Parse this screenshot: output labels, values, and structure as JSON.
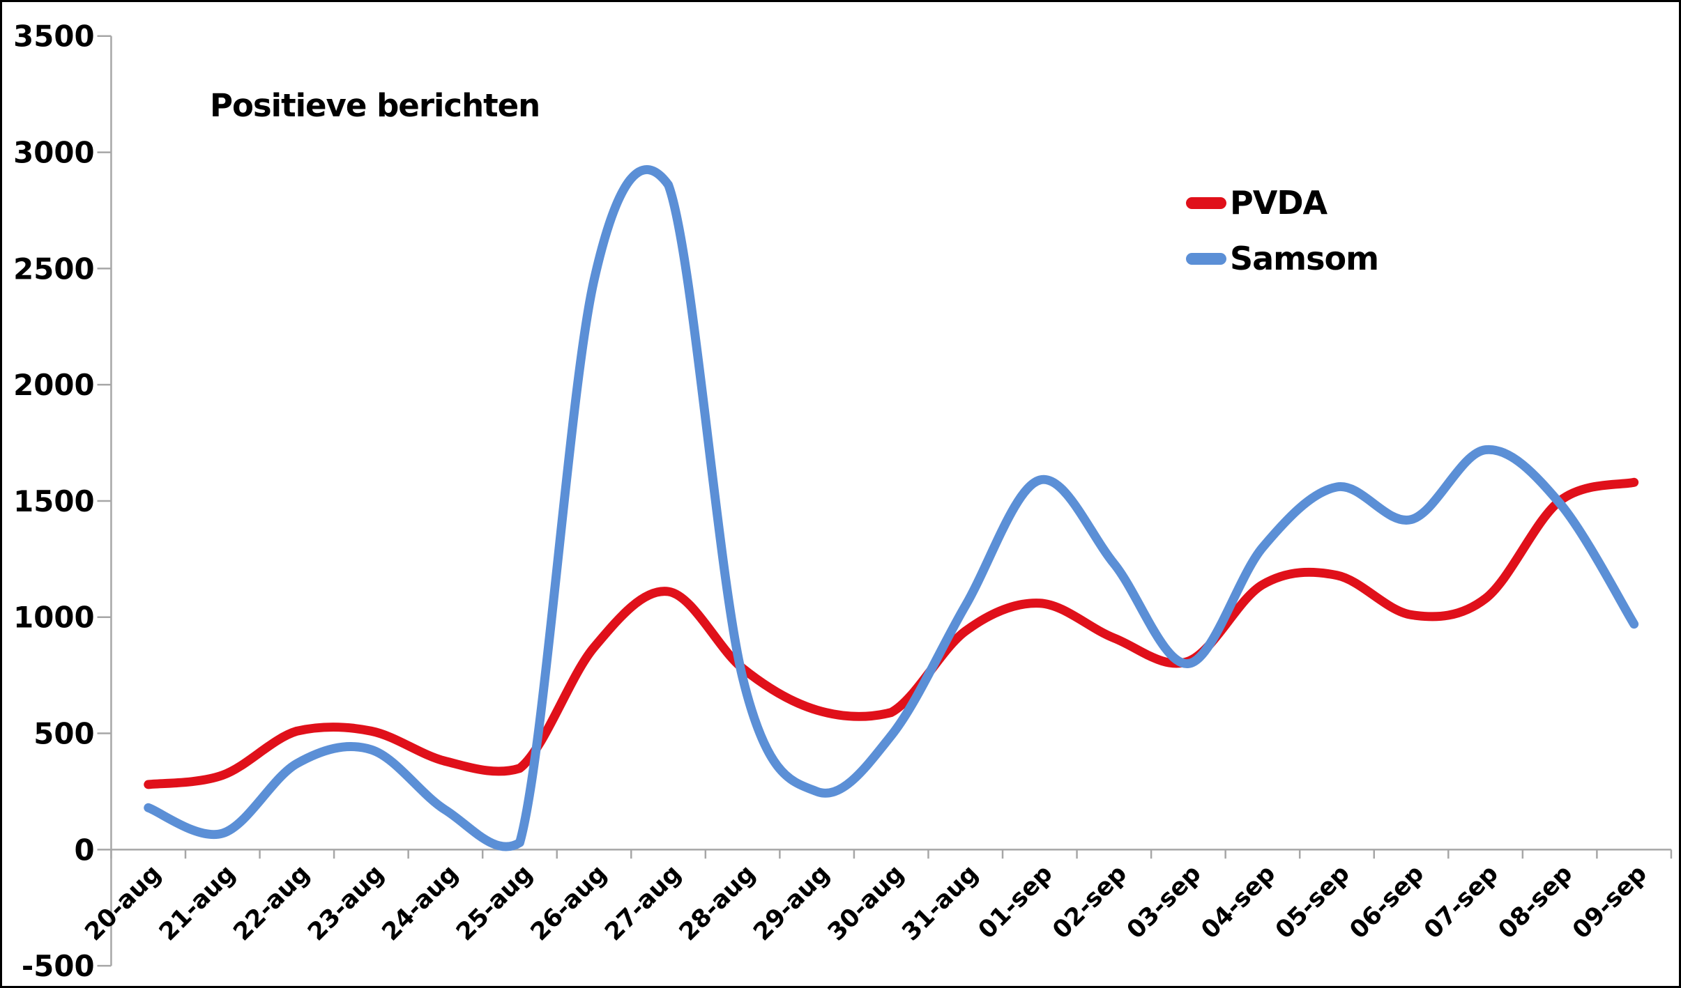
{
  "chart_data": {
    "type": "line",
    "title": "Positieve berichten",
    "smooth": true,
    "grid": false,
    "legend_position": "upper-right",
    "categories": [
      "20-aug",
      "21-aug",
      "22-aug",
      "23-aug",
      "24-aug",
      "25-aug",
      "26-aug",
      "27-aug",
      "28-aug",
      "29-aug",
      "30-aug",
      "31-aug",
      "01-sep",
      "02-sep",
      "03-sep",
      "04-sep",
      "05-sep",
      "06-sep",
      "07-sep",
      "08-sep",
      "09-sep"
    ],
    "series": [
      {
        "name": "PVDA",
        "color": "#E0101A",
        "values": [
          280,
          320,
          510,
          510,
          380,
          350,
          870,
          1110,
          780,
          600,
          590,
          940,
          1060,
          910,
          810,
          1140,
          1180,
          1010,
          1080,
          1500,
          1580
        ]
      },
      {
        "name": "Samsom",
        "color": "#5B8FD6",
        "values": [
          180,
          70,
          370,
          430,
          170,
          30,
          2450,
          2860,
          740,
          250,
          490,
          1050,
          1590,
          1230,
          800,
          1300,
          1560,
          1420,
          1720,
          1490,
          970
        ]
      }
    ],
    "xlabel": "",
    "ylabel": "",
    "ylim": [
      -500,
      3500
    ],
    "ytick_step": 500,
    "yticks": [
      "-500",
      "0",
      "500",
      "1000",
      "1500",
      "2000",
      "2500",
      "3000",
      "3500"
    ]
  },
  "styles": {
    "background": "#FFFFFF",
    "border_color": "#000000",
    "axis_color": "#A6A6A6",
    "text_color": "#000000"
  }
}
